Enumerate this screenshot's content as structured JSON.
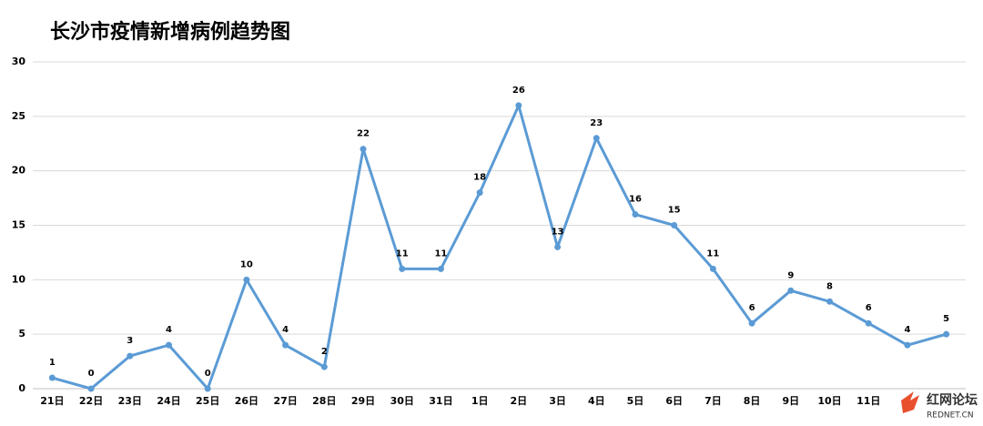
{
  "chart_data": {
    "type": "line",
    "title": "长沙市疫情新增病例趋势图",
    "categories": [
      "21日",
      "22日",
      "23日",
      "24日",
      "25日",
      "26日",
      "27日",
      "28日",
      "29日",
      "30日",
      "31日",
      "1日",
      "2日",
      "3日",
      "4日",
      "5日",
      "6日",
      "7日",
      "8日",
      "9日",
      "10日",
      "11日",
      null,
      null
    ],
    "series": [
      {
        "name": "新增病例",
        "color": "#5b9bd5",
        "values": [
          1,
          0,
          3,
          4,
          0,
          10,
          4,
          2,
          22,
          11,
          11,
          18,
          26,
          13,
          23,
          16,
          15,
          11,
          6,
          9,
          8,
          6,
          4,
          5
        ]
      }
    ],
    "ylim": [
      0,
      30
    ],
    "yticks": [
      0,
      5,
      10,
      15,
      20,
      25,
      30
    ],
    "grid": true,
    "watermark": {
      "name": "红网论坛",
      "site": "REDNET.CN"
    }
  }
}
